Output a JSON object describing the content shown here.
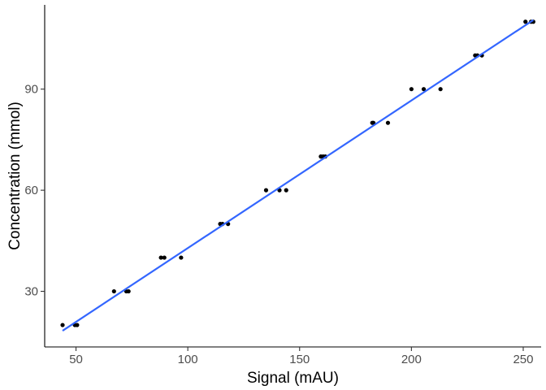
{
  "chart_data": {
    "type": "scatter",
    "xlabel": "Signal (mAU)",
    "ylabel": "Concentration (mmol)",
    "xlim": [
      36,
      258
    ],
    "ylim": [
      13.5,
      115
    ],
    "xticks": [
      50,
      100,
      150,
      200,
      250
    ],
    "yticks": [
      30,
      60,
      90
    ],
    "grid": false,
    "legend": "none",
    "points": [
      {
        "x": 44,
        "y": 20
      },
      {
        "x": 49.5,
        "y": 20
      },
      {
        "x": 50.5,
        "y": 20
      },
      {
        "x": 67,
        "y": 30
      },
      {
        "x": 72.5,
        "y": 30
      },
      {
        "x": 73.5,
        "y": 30
      },
      {
        "x": 88,
        "y": 40
      },
      {
        "x": 89.5,
        "y": 40
      },
      {
        "x": 97,
        "y": 40
      },
      {
        "x": 114.5,
        "y": 50
      },
      {
        "x": 115.5,
        "y": 50
      },
      {
        "x": 118,
        "y": 50
      },
      {
        "x": 135,
        "y": 60
      },
      {
        "x": 141,
        "y": 60
      },
      {
        "x": 144,
        "y": 60
      },
      {
        "x": 159.5,
        "y": 70
      },
      {
        "x": 160.5,
        "y": 70
      },
      {
        "x": 161.5,
        "y": 70
      },
      {
        "x": 182.5,
        "y": 80
      },
      {
        "x": 183,
        "y": 80
      },
      {
        "x": 189.5,
        "y": 80
      },
      {
        "x": 200,
        "y": 90
      },
      {
        "x": 205.5,
        "y": 90
      },
      {
        "x": 213,
        "y": 90
      },
      {
        "x": 228.5,
        "y": 100
      },
      {
        "x": 229.5,
        "y": 100
      },
      {
        "x": 231.5,
        "y": 100
      },
      {
        "x": 251,
        "y": 110
      },
      {
        "x": 253.5,
        "y": 110
      },
      {
        "x": 254.5,
        "y": 110
      }
    ],
    "fit_line": {
      "type": "linear",
      "x": [
        44,
        254.5
      ],
      "y": [
        18.3,
        110.5
      ]
    },
    "colors": {
      "points": "#000000",
      "fit_line": "#3366ff",
      "background": "#ffffff"
    }
  }
}
